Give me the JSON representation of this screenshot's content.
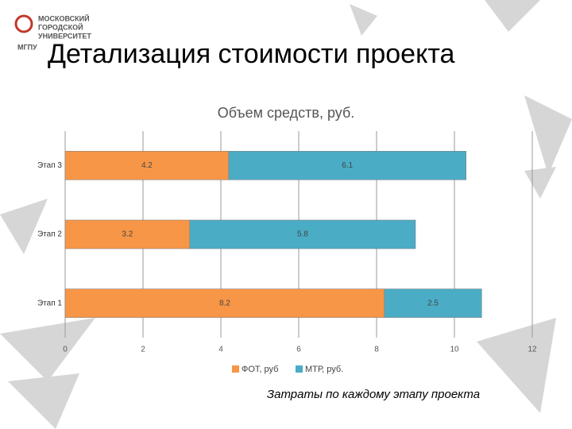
{
  "logo": [
    "МОСКОВСКИЙ",
    "ГОРОДСКОЙ",
    "УНИВЕРСИТЕТ",
    "МГПУ"
  ],
  "title": "Детализация стоимости проекта",
  "caption": "Затраты по каждому этапу проекта",
  "chart_data": {
    "type": "stacked-bar-horizontal",
    "title": "Объем средств, руб.",
    "categories": [
      "Этап 1",
      "Этап 2",
      "Этап 3"
    ],
    "series": [
      {
        "name": "ФОТ, руб",
        "color": "#f79646",
        "values": [
          8.2,
          3.2,
          4.2
        ]
      },
      {
        "name": "МТР, руб.",
        "color": "#4bacc6",
        "values": [
          2.5,
          5.8,
          6.1
        ]
      }
    ],
    "xlim": [
      0,
      12
    ],
    "xticks": [
      0,
      2,
      4,
      6,
      8,
      10,
      12
    ],
    "grid": true,
    "legend": "bottom"
  }
}
